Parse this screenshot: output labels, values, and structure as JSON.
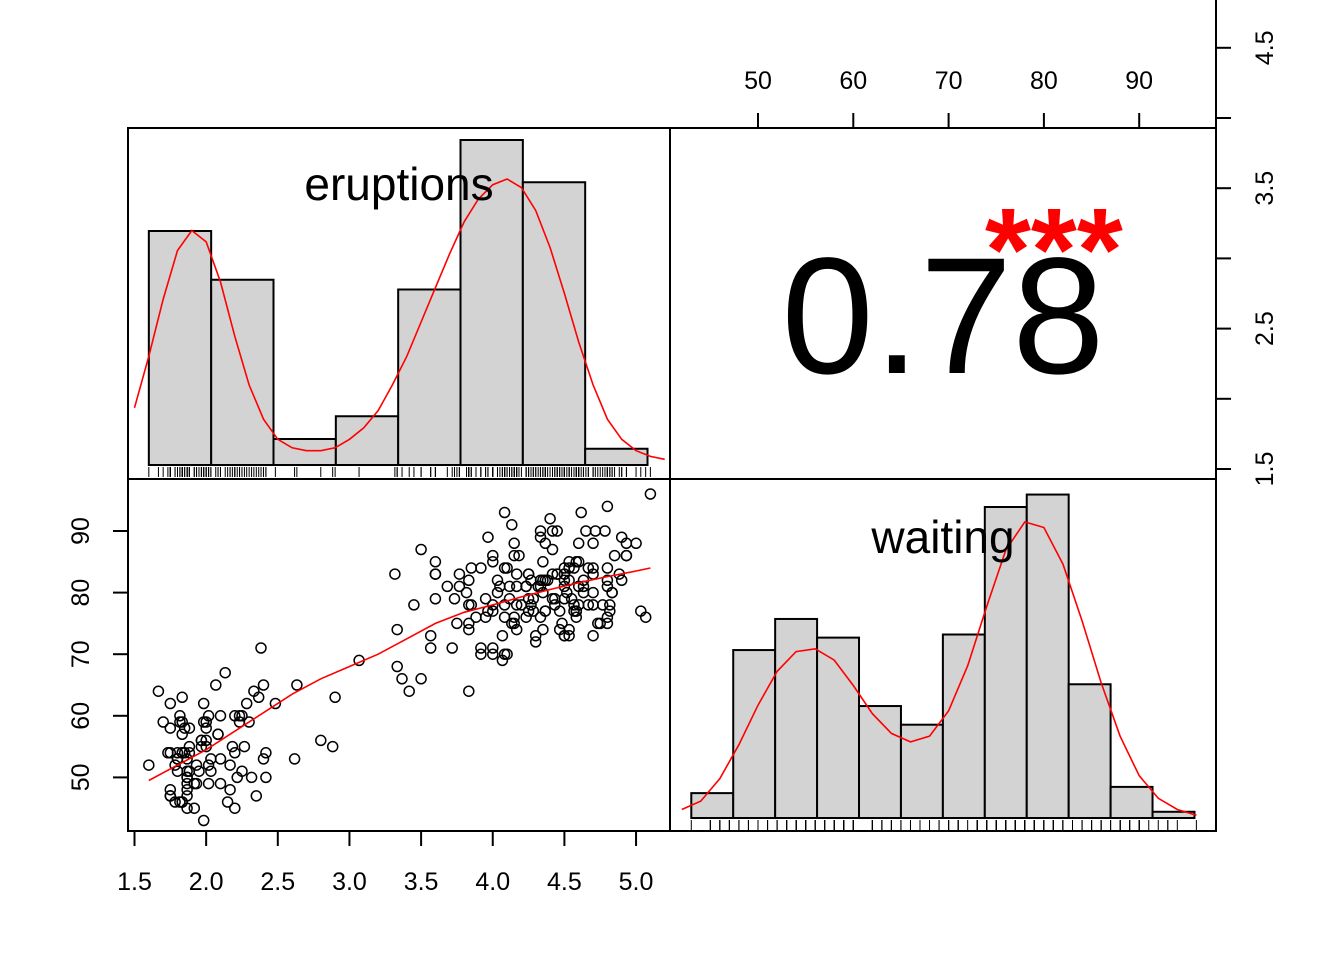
{
  "chart_data": {
    "type": "scatter-matrix",
    "variables": [
      "eruptions",
      "waiting"
    ],
    "colors": {
      "density": "#ff0000",
      "stars": "#ff0000",
      "bar_fill": "#d3d3d3",
      "ink": "#000000"
    },
    "correlation": {
      "value": "0.78",
      "stars": "***"
    },
    "eruptions_axis": {
      "ticks": [
        1.5,
        2.0,
        2.5,
        3.0,
        3.5,
        4.0,
        4.5,
        5.0
      ],
      "labels": [
        "1.5",
        "2.0",
        "2.5",
        "3.0",
        "3.5",
        "4.0",
        "4.5",
        "5.0"
      ],
      "range": [
        1.5,
        5.2
      ]
    },
    "eruptions_right_axis": {
      "ticks": [
        1.5,
        2.0,
        2.5,
        3.0,
        3.5,
        4.0,
        4.5,
        5.0
      ],
      "labels": [
        "1.5",
        "",
        "2.5",
        "",
        "3.5",
        "",
        "4.5",
        ""
      ]
    },
    "waiting_axis": {
      "ticks": [
        50,
        60,
        70,
        80,
        90
      ],
      "labels": [
        "50",
        "60",
        "70",
        "80",
        "90"
      ],
      "range": [
        42,
        97
      ]
    },
    "eruptions_histogram": {
      "bins": [
        1.6,
        2.035,
        2.47,
        2.905,
        3.34,
        3.775,
        4.21,
        4.645,
        5.08
      ],
      "density": [
        0.72,
        0.57,
        0.08,
        0.15,
        0.54,
        1.0,
        0.87,
        0.05
      ],
      "curve": [
        [
          1.5,
          0.2
        ],
        [
          1.6,
          0.38
        ],
        [
          1.7,
          0.58
        ],
        [
          1.8,
          0.75
        ],
        [
          1.9,
          0.82
        ],
        [
          2.0,
          0.78
        ],
        [
          2.1,
          0.64
        ],
        [
          2.2,
          0.45
        ],
        [
          2.3,
          0.28
        ],
        [
          2.4,
          0.16
        ],
        [
          2.5,
          0.09
        ],
        [
          2.6,
          0.06
        ],
        [
          2.7,
          0.05
        ],
        [
          2.8,
          0.05
        ],
        [
          2.9,
          0.06
        ],
        [
          3.0,
          0.09
        ],
        [
          3.1,
          0.13
        ],
        [
          3.2,
          0.19
        ],
        [
          3.3,
          0.28
        ],
        [
          3.4,
          0.38
        ],
        [
          3.5,
          0.5
        ],
        [
          3.6,
          0.62
        ],
        [
          3.7,
          0.74
        ],
        [
          3.8,
          0.85
        ],
        [
          3.9,
          0.93
        ],
        [
          4.0,
          0.98
        ],
        [
          4.1,
          1.0
        ],
        [
          4.2,
          0.97
        ],
        [
          4.3,
          0.89
        ],
        [
          4.4,
          0.76
        ],
        [
          4.5,
          0.6
        ],
        [
          4.6,
          0.43
        ],
        [
          4.7,
          0.28
        ],
        [
          4.8,
          0.16
        ],
        [
          4.9,
          0.09
        ],
        [
          5.0,
          0.05
        ],
        [
          5.1,
          0.03
        ],
        [
          5.2,
          0.02
        ]
      ]
    },
    "waiting_histogram": {
      "bins": [
        43,
        47.4,
        51.8,
        56.2,
        60.6,
        65,
        69.4,
        73.8,
        78.2,
        82.6,
        87,
        91.4,
        95.8
      ],
      "density": [
        0.08,
        0.54,
        0.64,
        0.58,
        0.36,
        0.3,
        0.59,
        1.0,
        1.04,
        0.43,
        0.1,
        0.02
      ],
      "curve": [
        [
          42,
          0.03
        ],
        [
          44,
          0.06
        ],
        [
          46,
          0.14
        ],
        [
          48,
          0.26
        ],
        [
          50,
          0.4
        ],
        [
          52,
          0.52
        ],
        [
          54,
          0.59
        ],
        [
          56,
          0.6
        ],
        [
          58,
          0.56
        ],
        [
          60,
          0.47
        ],
        [
          62,
          0.37
        ],
        [
          64,
          0.3
        ],
        [
          66,
          0.27
        ],
        [
          68,
          0.29
        ],
        [
          70,
          0.38
        ],
        [
          72,
          0.54
        ],
        [
          74,
          0.75
        ],
        [
          76,
          0.95
        ],
        [
          78,
          1.05
        ],
        [
          80,
          1.03
        ],
        [
          82,
          0.9
        ],
        [
          84,
          0.7
        ],
        [
          86,
          0.48
        ],
        [
          88,
          0.29
        ],
        [
          90,
          0.15
        ],
        [
          92,
          0.07
        ],
        [
          94,
          0.03
        ],
        [
          96,
          0.01
        ]
      ]
    },
    "loess": [
      [
        1.6,
        49.5
      ],
      [
        1.8,
        52
      ],
      [
        2.0,
        54.5
      ],
      [
        2.2,
        57.5
      ],
      [
        2.4,
        60.5
      ],
      [
        2.6,
        63.5
      ],
      [
        2.8,
        66
      ],
      [
        3.0,
        68
      ],
      [
        3.2,
        70
      ],
      [
        3.4,
        72.5
      ],
      [
        3.6,
        75
      ],
      [
        3.8,
        76.8
      ],
      [
        4.0,
        78
      ],
      [
        4.2,
        79.3
      ],
      [
        4.4,
        80.5
      ],
      [
        4.6,
        81.6
      ],
      [
        4.8,
        82.6
      ],
      [
        5.0,
        83.5
      ],
      [
        5.1,
        84
      ]
    ],
    "scatter_points": [
      [
        3.6,
        79
      ],
      [
        1.8,
        54
      ],
      [
        3.333,
        74
      ],
      [
        2.283,
        62
      ],
      [
        4.533,
        85
      ],
      [
        2.883,
        55
      ],
      [
        4.7,
        88
      ],
      [
        3.6,
        85
      ],
      [
        1.95,
        51
      ],
      [
        4.35,
        85
      ],
      [
        1.833,
        54
      ],
      [
        3.917,
        84
      ],
      [
        4.2,
        78
      ],
      [
        1.75,
        47
      ],
      [
        4.7,
        83
      ],
      [
        2.167,
        52
      ],
      [
        1.75,
        62
      ],
      [
        4.8,
        84
      ],
      [
        1.6,
        52
      ],
      [
        4.25,
        79
      ],
      [
        1.8,
        51
      ],
      [
        1.75,
        47
      ],
      [
        3.45,
        78
      ],
      [
        3.067,
        69
      ],
      [
        4.533,
        74
      ],
      [
        3.6,
        83
      ],
      [
        1.967,
        55
      ],
      [
        4.083,
        76
      ],
      [
        3.85,
        78
      ],
      [
        4.433,
        79
      ],
      [
        4.3,
        73
      ],
      [
        4.467,
        77
      ],
      [
        3.367,
        66
      ],
      [
        4.033,
        80
      ],
      [
        3.833,
        74
      ],
      [
        2.017,
        52
      ],
      [
        1.867,
        48
      ],
      [
        4.833,
        80
      ],
      [
        1.833,
        59
      ],
      [
        4.783,
        90
      ],
      [
        4.35,
        80
      ],
      [
        1.883,
        58
      ],
      [
        4.567,
        84
      ],
      [
        1.75,
        58
      ],
      [
        4.533,
        73
      ],
      [
        3.317,
        83
      ],
      [
        3.833,
        64
      ],
      [
        2.1,
        53
      ],
      [
        4.633,
        82
      ],
      [
        2.0,
        59
      ],
      [
        4.8,
        75
      ],
      [
        4.716,
        90
      ],
      [
        1.833,
        54
      ],
      [
        4.833,
        80
      ],
      [
        1.733,
        54
      ],
      [
        4.883,
        83
      ],
      [
        3.717,
        71
      ],
      [
        1.667,
        64
      ],
      [
        4.567,
        77
      ],
      [
        4.317,
        81
      ],
      [
        2.233,
        59
      ],
      [
        4.5,
        84
      ],
      [
        1.75,
        48
      ],
      [
        4.8,
        82
      ],
      [
        1.817,
        60
      ],
      [
        4.4,
        92
      ],
      [
        4.167,
        78
      ],
      [
        4.7,
        78
      ],
      [
        2.067,
        65
      ],
      [
        4.7,
        73
      ],
      [
        4.033,
        82
      ],
      [
        1.967,
        56
      ],
      [
        4.5,
        79
      ],
      [
        4.0,
        71
      ],
      [
        1.983,
        62
      ],
      [
        5.067,
        76
      ],
      [
        2.017,
        60
      ],
      [
        4.567,
        78
      ],
      [
        3.883,
        76
      ],
      [
        3.6,
        83
      ],
      [
        4.133,
        75
      ],
      [
        4.333,
        82
      ],
      [
        4.1,
        70
      ],
      [
        2.633,
        65
      ],
      [
        4.067,
        73
      ],
      [
        4.933,
        88
      ],
      [
        3.95,
        76
      ],
      [
        4.517,
        80
      ],
      [
        2.167,
        48
      ],
      [
        4.0,
        86
      ],
      [
        2.2,
        60
      ],
      [
        4.333,
        90
      ],
      [
        1.867,
        50
      ],
      [
        4.817,
        78
      ],
      [
        1.833,
        63
      ],
      [
        4.3,
        72
      ],
      [
        4.667,
        84
      ],
      [
        3.75,
        75
      ],
      [
        1.867,
        51
      ],
      [
        4.9,
        82
      ],
      [
        2.483,
        62
      ],
      [
        4.367,
        88
      ],
      [
        2.1,
        49
      ],
      [
        4.5,
        83
      ],
      [
        4.05,
        81
      ],
      [
        1.867,
        47
      ],
      [
        4.7,
        84
      ],
      [
        1.783,
        52
      ],
      [
        4.85,
        86
      ],
      [
        3.683,
        81
      ],
      [
        4.733,
        75
      ],
      [
        2.3,
        59
      ],
      [
        4.9,
        89
      ],
      [
        4.417,
        79
      ],
      [
        1.7,
        59
      ],
      [
        4.633,
        81
      ],
      [
        2.317,
        50
      ],
      [
        4.6,
        85
      ],
      [
        1.817,
        59
      ],
      [
        4.417,
        87
      ],
      [
        2.617,
        53
      ],
      [
        4.067,
        69
      ],
      [
        4.25,
        77
      ],
      [
        1.967,
        56
      ],
      [
        4.6,
        88
      ],
      [
        3.767,
        81
      ],
      [
        1.917,
        45
      ],
      [
        4.5,
        82
      ],
      [
        2.267,
        55
      ],
      [
        4.65,
        90
      ],
      [
        1.867,
        45
      ],
      [
        4.167,
        83
      ],
      [
        2.8,
        56
      ],
      [
        4.333,
        89
      ],
      [
        1.833,
        46
      ],
      [
        4.383,
        82
      ],
      [
        1.883,
        51
      ],
      [
        4.933,
        86
      ],
      [
        2.033,
        53
      ],
      [
        3.733,
        79
      ],
      [
        4.233,
        81
      ],
      [
        2.233,
        60
      ],
      [
        4.533,
        82
      ],
      [
        4.817,
        77
      ],
      [
        4.333,
        76
      ],
      [
        1.983,
        59
      ],
      [
        4.633,
        80
      ],
      [
        2.017,
        49
      ],
      [
        5.1,
        96
      ],
      [
        1.8,
        53
      ],
      [
        5.033,
        77
      ],
      [
        4.0,
        77
      ],
      [
        2.4,
        65
      ],
      [
        4.6,
        81
      ],
      [
        3.567,
        71
      ],
      [
        4.0,
        70
      ],
      [
        4.5,
        81
      ],
      [
        4.083,
        93
      ],
      [
        1.8,
        53
      ],
      [
        3.967,
        89
      ],
      [
        2.2,
        45
      ],
      [
        4.15,
        86
      ],
      [
        2.0,
        58
      ],
      [
        3.833,
        78
      ],
      [
        3.5,
        66
      ],
      [
        4.583,
        76
      ],
      [
        2.367,
        63
      ],
      [
        5.0,
        88
      ],
      [
        1.933,
        52
      ],
      [
        4.617,
        93
      ],
      [
        1.917,
        49
      ],
      [
        2.083,
        57
      ],
      [
        4.583,
        77
      ],
      [
        3.333,
        68
      ],
      [
        4.167,
        81
      ],
      [
        4.333,
        81
      ],
      [
        4.5,
        73
      ],
      [
        2.417,
        50
      ],
      [
        4.0,
        85
      ],
      [
        4.167,
        74
      ],
      [
        1.883,
        55
      ],
      [
        4.583,
        77
      ],
      [
        4.25,
        83
      ],
      [
        3.767,
        83
      ],
      [
        2.033,
        51
      ],
      [
        4.433,
        78
      ],
      [
        4.083,
        84
      ],
      [
        1.833,
        46
      ],
      [
        4.417,
        83
      ],
      [
        2.183,
        55
      ],
      [
        4.8,
        81
      ],
      [
        1.833,
        57
      ],
      [
        4.8,
        76
      ],
      [
        4.1,
        84
      ],
      [
        3.966,
        77
      ],
      [
        4.233,
        81
      ],
      [
        3.5,
        87
      ],
      [
        4.366,
        77
      ],
      [
        2.25,
        51
      ],
      [
        4.667,
        78
      ],
      [
        2.1,
        60
      ],
      [
        4.35,
        82
      ],
      [
        4.133,
        91
      ],
      [
        1.867,
        53
      ],
      [
        4.6,
        78
      ],
      [
        1.783,
        46
      ],
      [
        4.367,
        77
      ],
      [
        3.85,
        84
      ],
      [
        1.933,
        49
      ],
      [
        4.5,
        83
      ],
      [
        2.383,
        71
      ],
      [
        4.7,
        80
      ],
      [
        1.867,
        49
      ],
      [
        3.833,
        75
      ],
      [
        3.417,
        64
      ],
      [
        4.233,
        76
      ],
      [
        2.4,
        53
      ],
      [
        4.8,
        94
      ],
      [
        2.0,
        55
      ],
      [
        4.15,
        76
      ],
      [
        1.867,
        50
      ],
      [
        4.267,
        82
      ],
      [
        1.75,
        54
      ],
      [
        4.483,
        75
      ],
      [
        4.0,
        78
      ],
      [
        4.117,
        79
      ],
      [
        4.083,
        78
      ],
      [
        4.267,
        78
      ],
      [
        3.917,
        70
      ],
      [
        4.55,
        79
      ],
      [
        4.083,
        70
      ],
      [
        2.417,
        54
      ],
      [
        4.183,
        86
      ],
      [
        2.217,
        50
      ],
      [
        4.45,
        90
      ],
      [
        1.883,
        54
      ],
      [
        1.85,
        54
      ],
      [
        4.283,
        77
      ],
      [
        3.95,
        79
      ],
      [
        2.333,
        64
      ],
      [
        4.15,
        75
      ],
      [
        2.35,
        47
      ],
      [
        4.933,
        86
      ],
      [
        2.9,
        63
      ],
      [
        4.583,
        85
      ],
      [
        3.833,
        82
      ],
      [
        2.083,
        57
      ],
      [
        4.367,
        82
      ],
      [
        2.133,
        67
      ],
      [
        4.35,
        74
      ],
      [
        2.2,
        54
      ],
      [
        4.45,
        83
      ],
      [
        3.567,
        73
      ],
      [
        4.5,
        73
      ],
      [
        4.15,
        88
      ],
      [
        3.817,
        80
      ],
      [
        3.917,
        71
      ],
      [
        4.45,
        83
      ],
      [
        2.0,
        56
      ],
      [
        4.283,
        79
      ],
      [
        4.767,
        78
      ],
      [
        4.533,
        84
      ],
      [
        1.85,
        58
      ],
      [
        4.25,
        83
      ],
      [
        1.983,
        43
      ],
      [
        2.25,
        60
      ],
      [
        4.75,
        75
      ],
      [
        4.117,
        81
      ],
      [
        2.15,
        46
      ],
      [
        4.417,
        90
      ],
      [
        1.817,
        46
      ],
      [
        4.467,
        74
      ]
    ]
  }
}
